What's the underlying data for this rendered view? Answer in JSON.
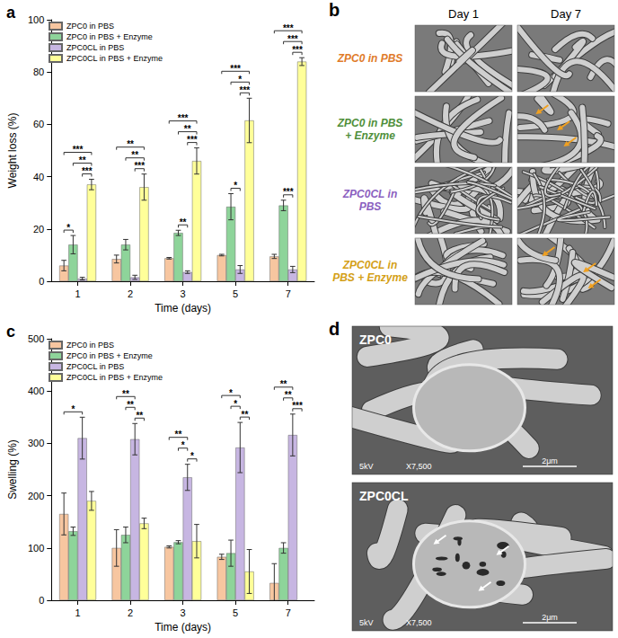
{
  "chart_data": [
    {
      "type": "bar",
      "title": "a",
      "x_label": "Time (days)",
      "y_label": "Weight loss (%)",
      "categories": [
        "1",
        "2",
        "3",
        "5",
        "7"
      ],
      "series": [
        {
          "name": "ZPC0 in PBS",
          "color": "#f7c6a0",
          "values": [
            6,
            8.5,
            8.8,
            10,
            9.5
          ],
          "errors": [
            2,
            1.5,
            0.3,
            0.3,
            0.8
          ]
        },
        {
          "name": "ZPC0 in PBS + Enzyme",
          "color": "#8ed49a",
          "values": [
            14,
            14,
            18.5,
            28.5,
            29
          ],
          "errors": [
            3.5,
            2,
            1,
            5,
            2
          ]
        },
        {
          "name": "ZPC0CL in PBS",
          "color": "#c7b6e2",
          "values": [
            1,
            1.5,
            3.5,
            4.5,
            4.5
          ],
          "errors": [
            0.5,
            0.8,
            0.5,
            1.5,
            1.2
          ]
        },
        {
          "name": "ZPC0CL in PBS + Enzyme",
          "color": "#ffff99",
          "values": [
            37,
            36,
            46,
            61.5,
            84
          ],
          "errors": [
            2,
            5,
            5,
            8.5,
            1.5
          ]
        }
      ],
      "ylim": [
        0,
        100
      ],
      "yticks": [
        0,
        20,
        40,
        60,
        80,
        100
      ],
      "grid": false,
      "legend": "upper left",
      "annotations": [
        {
          "category": "1",
          "pair": [
            "ZPC0 in PBS",
            "ZPC0 in PBS + Enzyme"
          ],
          "label": "*"
        },
        {
          "category": "1",
          "pair": [
            "ZPC0CL in PBS",
            "ZPC0CL in PBS + Enzyme"
          ],
          "label": "***"
        },
        {
          "category": "1",
          "pair": [
            "ZPC0 in PBS + Enzyme",
            "ZPC0CL in PBS + Enzyme"
          ],
          "label": "**"
        },
        {
          "category": "1",
          "pair": [
            "ZPC0 in PBS",
            "ZPC0CL in PBS + Enzyme"
          ],
          "label": "***"
        },
        {
          "category": "2",
          "pair": [
            "ZPC0CL in PBS",
            "ZPC0CL in PBS + Enzyme"
          ],
          "label": "***"
        },
        {
          "category": "2",
          "pair": [
            "ZPC0 in PBS + Enzyme",
            "ZPC0CL in PBS + Enzyme"
          ],
          "label": "**"
        },
        {
          "category": "2",
          "pair": [
            "ZPC0 in PBS",
            "ZPC0CL in PBS + Enzyme"
          ],
          "label": "**"
        },
        {
          "category": "3",
          "pair": [
            "ZPC0 in PBS + Enzyme",
            "ZPC0CL in PBS"
          ],
          "label": "**"
        },
        {
          "category": "3",
          "pair": [
            "ZPC0CL in PBS",
            "ZPC0CL in PBS + Enzyme"
          ],
          "label": "***"
        },
        {
          "category": "3",
          "pair": [
            "ZPC0 in PBS + Enzyme",
            "ZPC0CL in PBS + Enzyme"
          ],
          "label": "**"
        },
        {
          "category": "3",
          "pair": [
            "ZPC0 in PBS",
            "ZPC0CL in PBS + Enzyme"
          ],
          "label": "***"
        },
        {
          "category": "5",
          "pair": [
            "ZPC0 in PBS + Enzyme",
            "ZPC0CL in PBS"
          ],
          "label": "*"
        },
        {
          "category": "5",
          "pair": [
            "ZPC0CL in PBS",
            "ZPC0CL in PBS + Enzyme"
          ],
          "label": "***"
        },
        {
          "category": "5",
          "pair": [
            "ZPC0 in PBS + Enzyme",
            "ZPC0CL in PBS + Enzyme"
          ],
          "label": "*"
        },
        {
          "category": "5",
          "pair": [
            "ZPC0 in PBS",
            "ZPC0CL in PBS + Enzyme"
          ],
          "label": "***"
        },
        {
          "category": "7",
          "pair": [
            "ZPC0 in PBS + Enzyme",
            "ZPC0CL in PBS"
          ],
          "label": "***"
        },
        {
          "category": "7",
          "pair": [
            "ZPC0CL in PBS",
            "ZPC0CL in PBS + Enzyme"
          ],
          "label": "***"
        },
        {
          "category": "7",
          "pair": [
            "ZPC0 in PBS + Enzyme",
            "ZPC0CL in PBS + Enzyme"
          ],
          "label": "***"
        },
        {
          "category": "7",
          "pair": [
            "ZPC0 in PBS",
            "ZPC0CL in PBS + Enzyme"
          ],
          "label": "***"
        }
      ]
    },
    {
      "type": "bar",
      "title": "c",
      "x_label": "Time (days)",
      "y_label": "Swelling (%)",
      "categories": [
        "1",
        "2",
        "3",
        "5",
        "7"
      ],
      "series": [
        {
          "name": "ZPC0 in PBS",
          "color": "#f7c6a0",
          "values": [
            165,
            100,
            102,
            83,
            33
          ],
          "errors": [
            40,
            35,
            2,
            5,
            37
          ]
        },
        {
          "name": "ZPC0 in PBS + Enzyme",
          "color": "#8ed49a",
          "values": [
            132,
            125,
            111,
            90,
            100
          ],
          "errors": [
            8,
            15,
            3,
            25,
            10
          ]
        },
        {
          "name": "ZPC0CL in PBS",
          "color": "#c7b6e2",
          "values": [
            310,
            308,
            235,
            292,
            316
          ],
          "errors": [
            40,
            30,
            25,
            48,
            40
          ]
        },
        {
          "name": "ZPC0CL in PBS + Enzyme",
          "color": "#ffff99",
          "values": [
            190,
            147,
            113,
            55,
            null
          ],
          "errors": [
            18,
            10,
            32,
            42,
            null
          ]
        }
      ],
      "ylim": [
        0,
        500
      ],
      "yticks": [
        0,
        100,
        200,
        300,
        400,
        500
      ],
      "grid": false,
      "legend": "upper left",
      "annotations": [
        {
          "category": "1",
          "pair": [
            "ZPC0 in PBS",
            "ZPC0CL in PBS"
          ],
          "label": "*"
        },
        {
          "category": "2",
          "pair": [
            "ZPC0CL in PBS",
            "ZPC0CL in PBS + Enzyme"
          ],
          "label": "**"
        },
        {
          "category": "2",
          "pair": [
            "ZPC0 in PBS + Enzyme",
            "ZPC0CL in PBS"
          ],
          "label": "**"
        },
        {
          "category": "2",
          "pair": [
            "ZPC0 in PBS",
            "ZPC0CL in PBS"
          ],
          "label": "**"
        },
        {
          "category": "3",
          "pair": [
            "ZPC0CL in PBS",
            "ZPC0CL in PBS + Enzyme"
          ],
          "label": "*"
        },
        {
          "category": "3",
          "pair": [
            "ZPC0 in PBS + Enzyme",
            "ZPC0CL in PBS"
          ],
          "label": "*"
        },
        {
          "category": "3",
          "pair": [
            "ZPC0 in PBS",
            "ZPC0CL in PBS"
          ],
          "label": "**"
        },
        {
          "category": "5",
          "pair": [
            "ZPC0CL in PBS",
            "ZPC0CL in PBS + Enzyme"
          ],
          "label": "**"
        },
        {
          "category": "5",
          "pair": [
            "ZPC0 in PBS + Enzyme",
            "ZPC0CL in PBS"
          ],
          "label": "*"
        },
        {
          "category": "5",
          "pair": [
            "ZPC0 in PBS",
            "ZPC0CL in PBS"
          ],
          "label": "*"
        },
        {
          "category": "7",
          "pair": [
            "ZPC0CL in PBS",
            "ZPC0CL in PBS + Enzyme"
          ],
          "label": "***"
        },
        {
          "category": "7",
          "pair": [
            "ZPC0 in PBS + Enzyme",
            "ZPC0CL in PBS"
          ],
          "label": "**"
        },
        {
          "category": "7",
          "pair": [
            "ZPC0 in PBS",
            "ZPC0CL in PBS"
          ],
          "label": "**"
        }
      ]
    }
  ],
  "panel_b": {
    "label": "b",
    "columns": [
      "Day 1",
      "Day 7"
    ],
    "rows": [
      {
        "label": "ZPC0 in PBS",
        "color": "#e07b2a",
        "arrows": [
          false,
          false
        ]
      },
      {
        "label": "ZPC0 in PBS + Enzyme",
        "color": "#4f8f3a",
        "arrows": [
          false,
          true
        ]
      },
      {
        "label": "ZPC0CL in PBS",
        "color": "#8b5fbf",
        "arrows": [
          false,
          false
        ]
      },
      {
        "label": "ZPC0CL in PBS + Enzyme",
        "color": "#d4a017",
        "arrows": [
          false,
          true
        ]
      }
    ]
  },
  "panel_d": {
    "label": "d",
    "images": [
      {
        "label": "ZPC0",
        "footer": [
          "5kV",
          "X7,500",
          "2μm"
        ],
        "arrows": false
      },
      {
        "label": "ZPC0CL",
        "footer": [
          "5kV",
          "X7,500",
          "2μm"
        ],
        "arrows": true
      }
    ]
  }
}
